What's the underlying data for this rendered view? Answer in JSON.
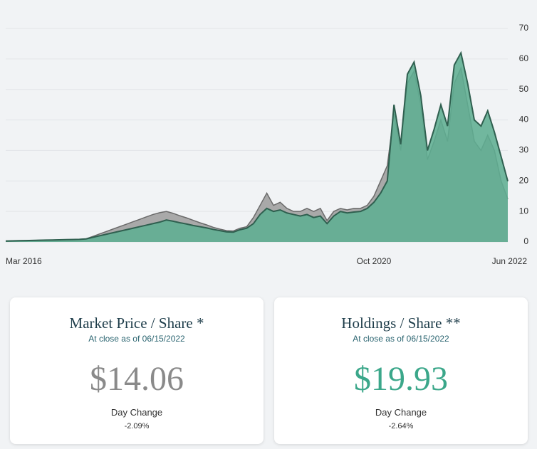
{
  "chart_data": {
    "type": "area",
    "categories": [
      "Mar 2016",
      null,
      null,
      null,
      null,
      null,
      null,
      null,
      null,
      null,
      null,
      null,
      null,
      null,
      null,
      null,
      null,
      null,
      null,
      null,
      null,
      null,
      null,
      null,
      null,
      null,
      null,
      null,
      null,
      null,
      null,
      null,
      null,
      null,
      null,
      null,
      null,
      null,
      null,
      null,
      null,
      null,
      null,
      null,
      null,
      null,
      null,
      null,
      null,
      null,
      null,
      null,
      null,
      null,
      null,
      "Oct 2020",
      null,
      null,
      null,
      null,
      null,
      null,
      null,
      null,
      null,
      null,
      null,
      null,
      null,
      null,
      null,
      null,
      null,
      null,
      null,
      "Jun 2022"
    ],
    "series": [
      {
        "color": "#a9a9a9",
        "values": [
          0.3,
          0.35,
          0.4,
          0.45,
          0.5,
          0.55,
          0.6,
          0.65,
          0.7,
          0.75,
          0.8,
          0.85,
          1,
          1.8,
          2.6,
          3.4,
          4.2,
          5,
          5.8,
          6.6,
          7.4,
          8.2,
          9,
          9.6,
          10,
          9.4,
          8.6,
          7.9,
          7.1,
          6.3,
          5.6,
          4.8,
          4.2,
          3.7,
          3.6,
          4.5,
          5,
          8,
          12,
          16,
          12,
          13,
          11,
          10,
          10,
          11,
          10,
          11,
          7,
          10,
          11,
          10.5,
          11,
          11,
          12,
          15,
          20,
          25,
          42,
          30,
          52,
          56,
          45,
          27,
          33,
          40,
          33,
          52,
          57,
          45,
          33,
          30,
          35,
          30,
          20,
          14.06
        ]
      },
      {
        "color": "#5fae92",
        "values": [
          0.3,
          0.35,
          0.4,
          0.45,
          0.5,
          0.55,
          0.6,
          0.65,
          0.7,
          0.75,
          0.8,
          0.85,
          1,
          1.5,
          2,
          2.5,
          3,
          3.5,
          4,
          4.5,
          5,
          5.5,
          6,
          6.5,
          7.2,
          6.8,
          6.3,
          5.9,
          5.4,
          5,
          4.6,
          4.1,
          3.7,
          3.3,
          3.2,
          4,
          4.5,
          6,
          9,
          11,
          10,
          10.5,
          9.5,
          9,
          8.5,
          9,
          8,
          8.5,
          6,
          8.5,
          10,
          9.5,
          9.8,
          10,
          11,
          13,
          16,
          20,
          45,
          32,
          55,
          59,
          48,
          30,
          37,
          45,
          38,
          58,
          62,
          52,
          40,
          38,
          43,
          36,
          28,
          19.93
        ]
      }
    ],
    "ylim": [
      0,
      70
    ],
    "yticks": [
      0,
      10,
      20,
      30,
      40,
      50,
      60,
      70
    ],
    "grid": true
  },
  "cards": [
    {
      "title": "Market Price / Share",
      "mark": "*",
      "subtitle": "At close as of 06/15/2022",
      "value": "$14.06",
      "change_label": "Day Change",
      "change": "-2.09%"
    },
    {
      "title": "Holdings / Share",
      "mark": "**",
      "subtitle": "At close as of 06/15/2022",
      "value": "$19.93",
      "change_label": "Day Change",
      "change": "-2.64%"
    }
  ]
}
